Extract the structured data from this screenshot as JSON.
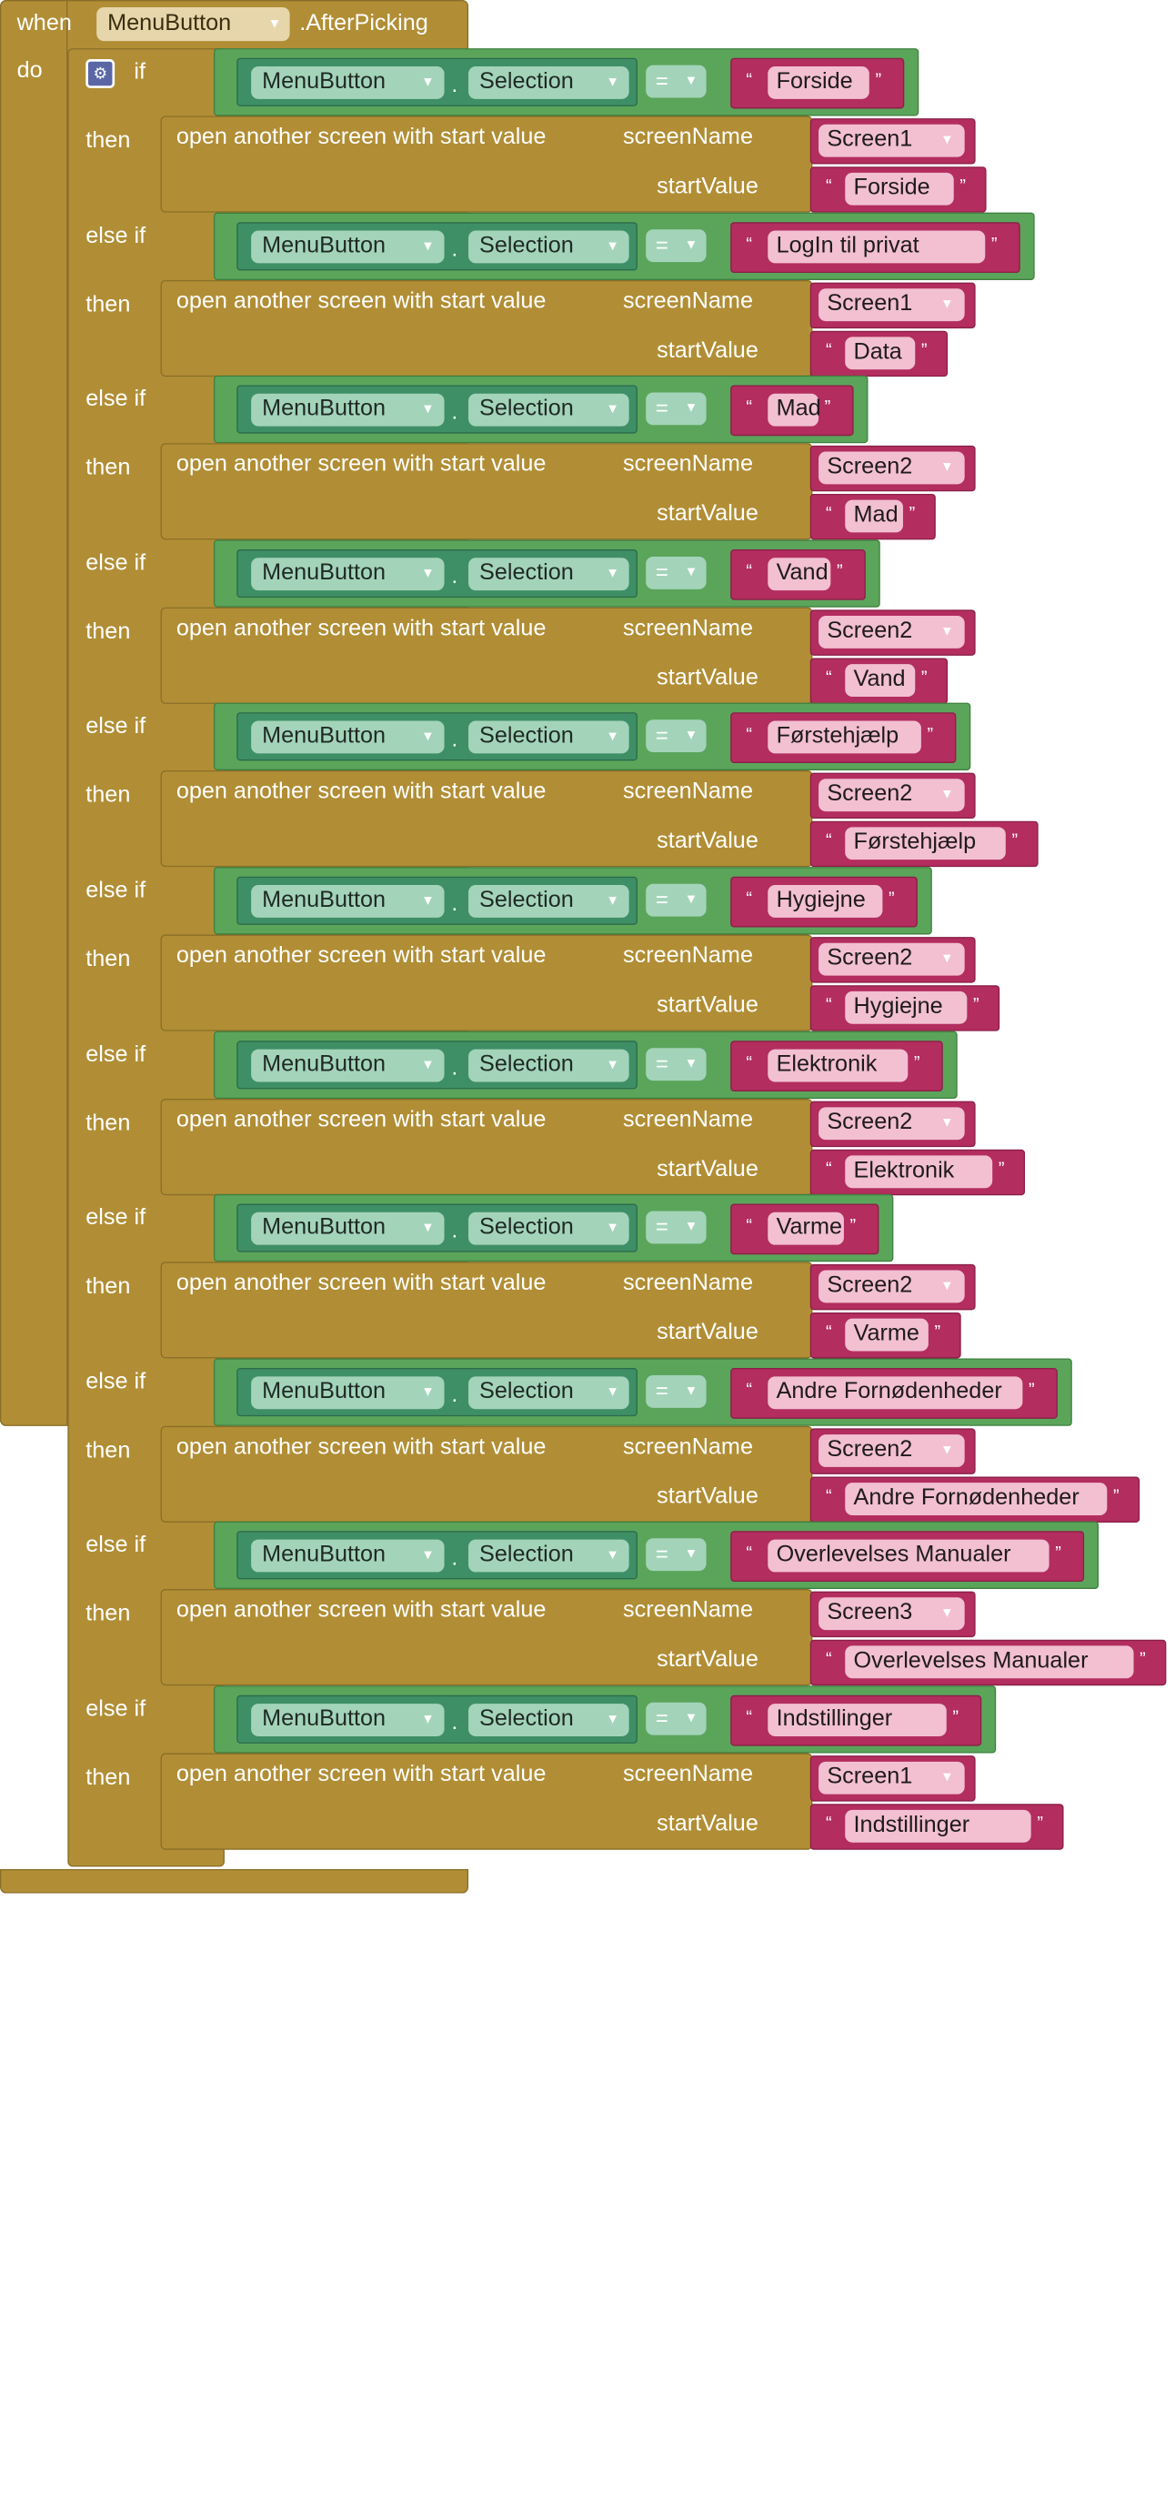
{
  "event": {
    "when_label": "when",
    "component": "MenuButton",
    "event_name": ".AfterPicking",
    "do_label": "do"
  },
  "keywords": {
    "if": "if",
    "else_if": "else if",
    "then": "then",
    "dot": ".",
    "equals": "=",
    "open_screen": "open another screen with start value",
    "screen_name": "screenName",
    "start_value": "startValue",
    "quote_open": "“",
    "quote_close": "”"
  },
  "getter": {
    "component": "MenuButton",
    "property": "Selection"
  },
  "branches": [
    {
      "compare": "Forside",
      "screen": "Screen1",
      "start_value": "Forside"
    },
    {
      "compare": "LogIn til privat",
      "screen": "Screen1",
      "start_value": "Data"
    },
    {
      "compare": "Mad",
      "screen": "Screen2",
      "start_value": "Mad"
    },
    {
      "compare": "Vand",
      "screen": "Screen2",
      "start_value": "Vand"
    },
    {
      "compare": "Førstehjælp",
      "screen": "Screen2",
      "start_value": "Førstehjælp"
    },
    {
      "compare": "Hygiejne",
      "screen": "Screen2",
      "start_value": "Hygiejne"
    },
    {
      "compare": "Elektronik",
      "screen": "Screen2",
      "start_value": "Elektronik"
    },
    {
      "compare": "Varme",
      "screen": "Screen2",
      "start_value": "Varme"
    },
    {
      "compare": "Andre Fornødenheder",
      "screen": "Screen2",
      "start_value": "Andre Fornødenheder"
    },
    {
      "compare": "Overlevelses Manualer",
      "screen": "Screen3",
      "start_value": "Overlevelses Manualer"
    },
    {
      "compare": "Indstillinger",
      "screen": "Screen1",
      "start_value": "Indstillinger"
    }
  ],
  "colors": {
    "control": "#b18e35",
    "logic_compare": "#5ba55b",
    "component_getter": "#3f8f66",
    "text": "#b32d5e",
    "mutator_gear": "#5b67a5"
  },
  "icons": {
    "gear": "gear-icon",
    "dropdown": "dropdown-arrow-icon"
  }
}
